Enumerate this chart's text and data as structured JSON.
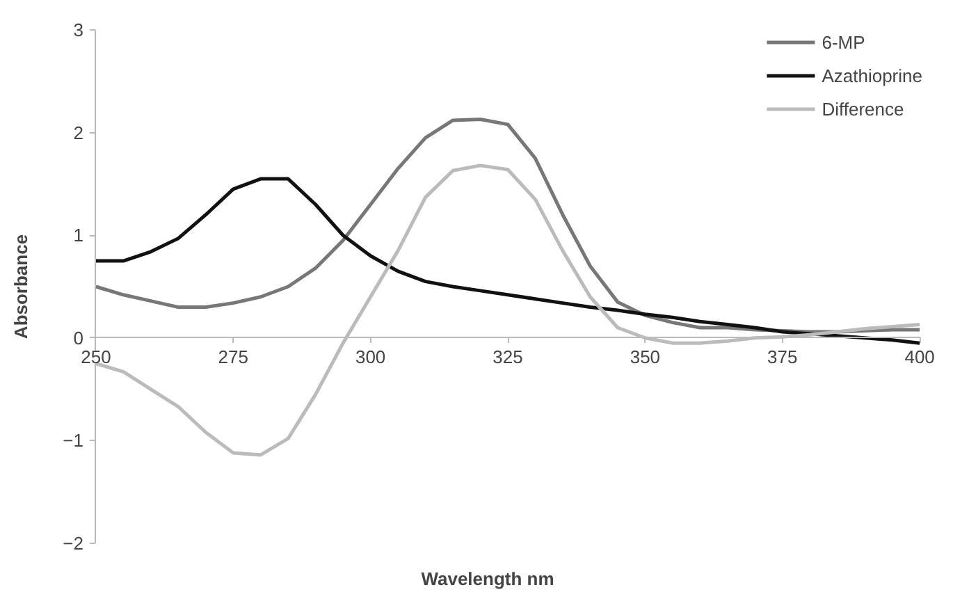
{
  "chart_data": {
    "type": "line",
    "xlabel": "Wavelength nm",
    "ylabel": "Absorbance",
    "x": [
      250,
      255,
      260,
      265,
      270,
      275,
      280,
      285,
      290,
      295,
      300,
      305,
      310,
      315,
      320,
      325,
      330,
      335,
      340,
      345,
      350,
      355,
      360,
      365,
      370,
      375,
      380,
      385,
      390,
      395,
      400
    ],
    "series": [
      {
        "name": "6-MP",
        "color": "#777777",
        "values": [
          0.5,
          0.42,
          0.36,
          0.3,
          0.3,
          0.34,
          0.4,
          0.5,
          0.68,
          0.95,
          1.3,
          1.65,
          1.95,
          2.12,
          2.13,
          2.08,
          1.75,
          1.2,
          0.7,
          0.35,
          0.22,
          0.15,
          0.1,
          0.1,
          0.08,
          0.07,
          0.06,
          0.06,
          0.07,
          0.08,
          0.08
        ]
      },
      {
        "name": "Azathioprine",
        "color": "#111111",
        "values": [
          0.75,
          0.75,
          0.84,
          0.97,
          1.2,
          1.45,
          1.55,
          1.55,
          1.3,
          1.0,
          0.8,
          0.65,
          0.55,
          0.5,
          0.46,
          0.42,
          0.38,
          0.34,
          0.3,
          0.27,
          0.23,
          0.2,
          0.16,
          0.13,
          0.1,
          0.06,
          0.04,
          0.02,
          0,
          -0.02,
          -0.05
        ]
      },
      {
        "name": "Difference",
        "color": "#bbbbbb",
        "values": [
          -0.25,
          -0.33,
          -0.5,
          -0.67,
          -0.92,
          -1.12,
          -1.14,
          -0.98,
          -0.55,
          -0.05,
          0.4,
          0.85,
          1.37,
          1.63,
          1.68,
          1.64,
          1.35,
          0.85,
          0.4,
          0.1,
          0,
          -0.05,
          -0.05,
          -0.03,
          0,
          0.01,
          0.03,
          0.06,
          0.09,
          0.11,
          0.13
        ]
      }
    ],
    "xlim": [
      250,
      400
    ],
    "ylim": [
      -2,
      3
    ],
    "xticks": [
      250,
      275,
      300,
      325,
      350,
      375,
      400
    ],
    "yticks": [
      -2,
      -1,
      0,
      1,
      2,
      3
    ],
    "grid": false,
    "legend": "top right",
    "marker": "none",
    "line_style": "solid"
  }
}
